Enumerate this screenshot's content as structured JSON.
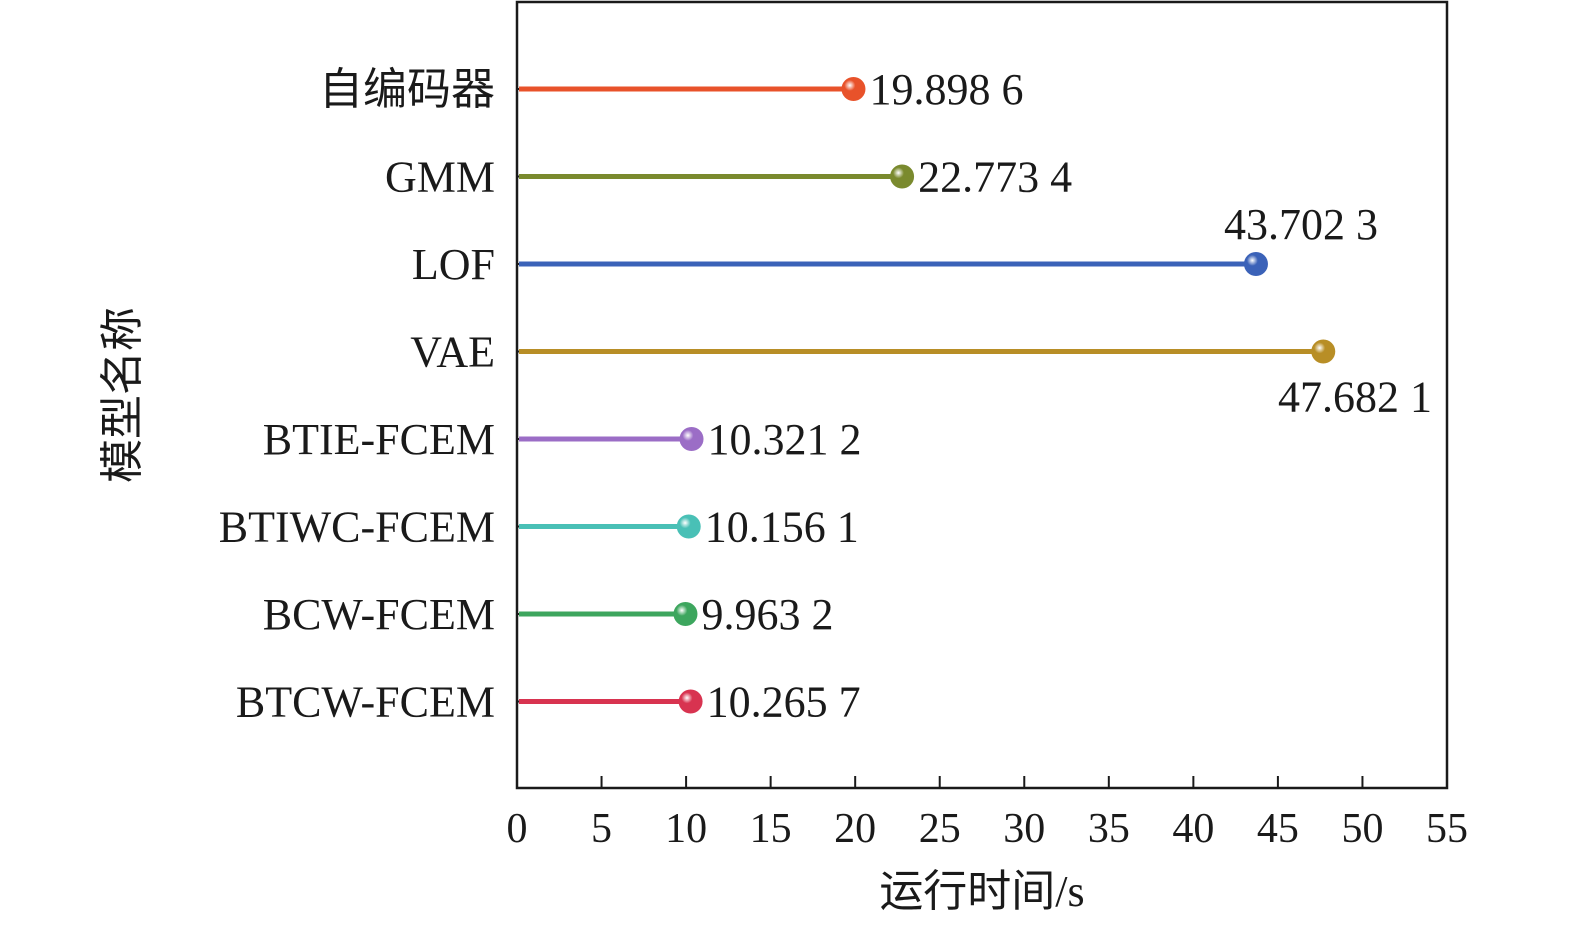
{
  "chart_data": {
    "type": "lollipop",
    "orientation": "horizontal",
    "xlabel": "运行时间/s",
    "ylabel": "模型名称",
    "xlim": [
      0,
      55
    ],
    "xticks": [
      "0",
      "5",
      "10",
      "15",
      "20",
      "25",
      "30",
      "35",
      "40",
      "45",
      "50",
      "55"
    ],
    "grid": false,
    "legend": "none",
    "categories": [
      "自编码器",
      "GMM",
      "LOF",
      "VAE",
      "BTIE-FCEM",
      "BTIWC-FCEM",
      "BCW-FCEM",
      "BTCW-FCEM"
    ],
    "values": [
      19.8986,
      22.7734,
      43.7023,
      47.6821,
      10.3212,
      10.1561,
      9.9632,
      10.2657
    ],
    "value_labels": [
      "19.898 6",
      "22.773 4",
      "43.702 3",
      "47.682 1",
      "10.321 2",
      "10.156 1",
      "9.963 2",
      "10.265 7"
    ],
    "colors": [
      "#E8522A",
      "#7A8A2E",
      "#3B62B8",
      "#B88E26",
      "#9B6DC6",
      "#49C0B6",
      "#3DA65E",
      "#D83350"
    ]
  }
}
